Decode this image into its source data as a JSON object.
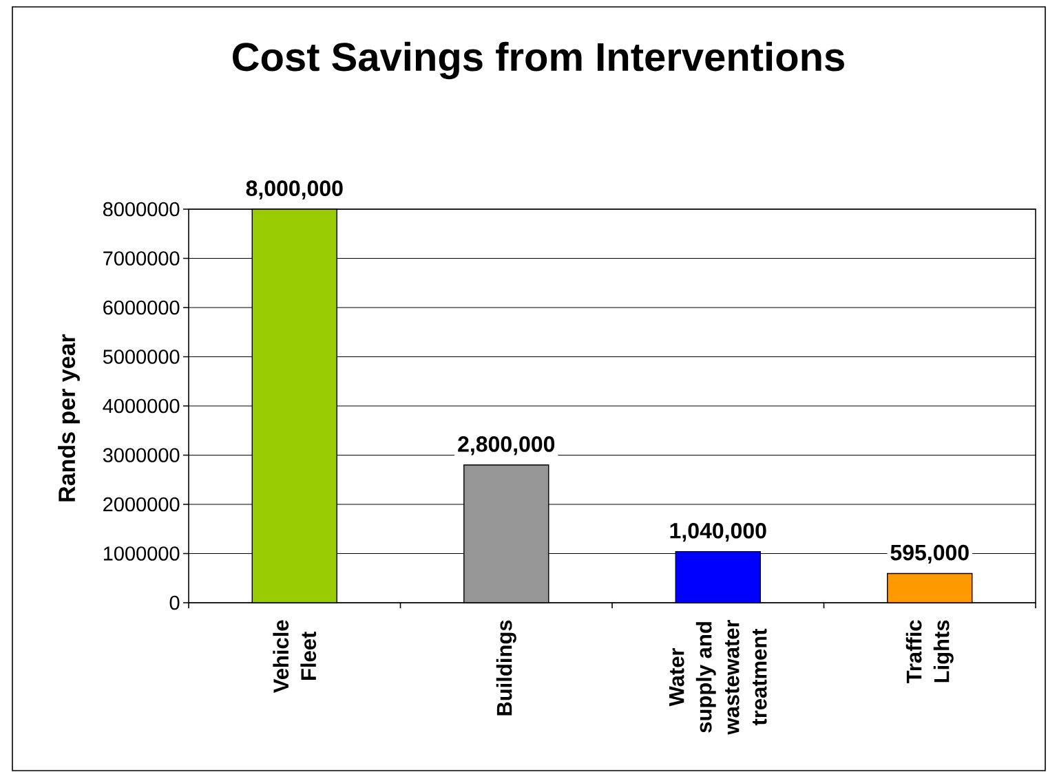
{
  "chart_data": {
    "type": "bar",
    "title": "Cost Savings from Interventions",
    "ylabel": "Rands per year",
    "categories": [
      "Vehicle Fleet",
      "Buildings",
      "Water supply and wastewater treatment",
      "Traffic Lights"
    ],
    "values": [
      8000000,
      2800000,
      1040000,
      595000
    ],
    "colors": [
      "#99cc00",
      "#969696",
      "#0000ff",
      "#ff9900"
    ],
    "value_labels": [
      "8,000,000",
      "2,800,000",
      "1,040,000",
      "595,000"
    ],
    "ylim": [
      0,
      8000000
    ],
    "yticks": [
      0,
      1000000,
      2000000,
      3000000,
      4000000,
      5000000,
      6000000,
      7000000,
      8000000
    ],
    "grid": "y"
  }
}
